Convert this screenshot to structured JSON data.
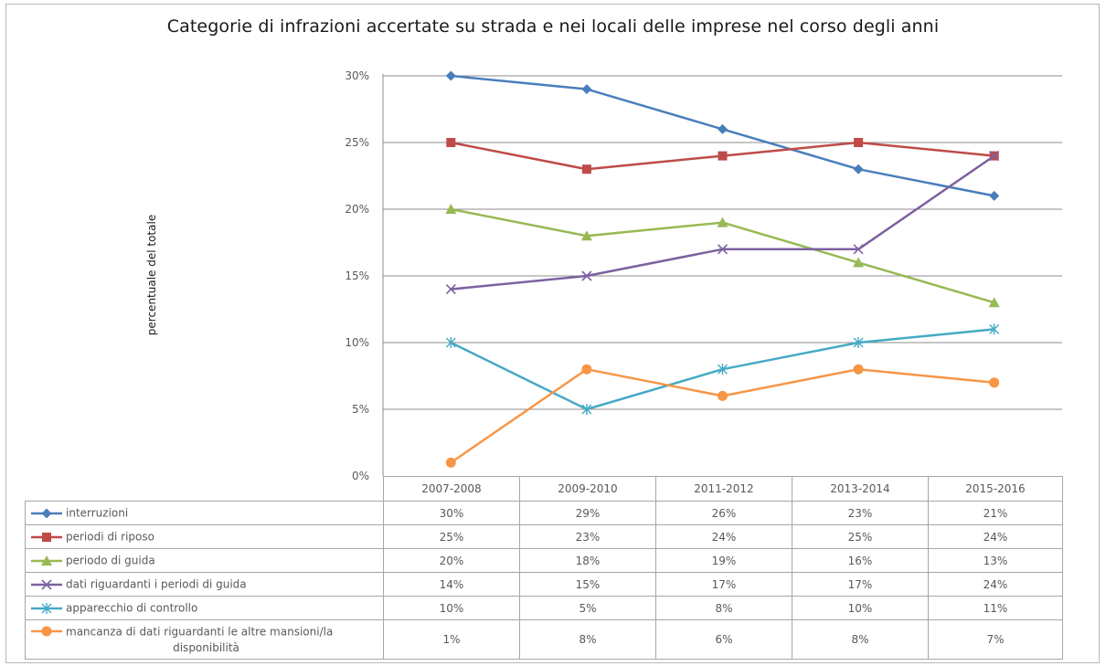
{
  "chart_data": {
    "type": "line",
    "title": "Categorie di infrazioni accertate su strada e nei locali delle imprese nel corso degli anni",
    "ylabel": "percentuale del totale",
    "xlabel": "",
    "categories": [
      "2007-2008",
      "2009-2010",
      "2011-2012",
      "2013-2014",
      "2015-2016"
    ],
    "ylim": [
      0,
      30
    ],
    "yticks": [
      "0%",
      "5%",
      "10%",
      "15%",
      "20%",
      "25%",
      "30%"
    ],
    "grid": true,
    "legend": "data-table",
    "series": [
      {
        "name": "interruzioni",
        "values": [
          30,
          29,
          26,
          23,
          21
        ],
        "labels": [
          "30%",
          "29%",
          "26%",
          "23%",
          "21%"
        ],
        "color": "#4a7ebb",
        "marker": "diamond"
      },
      {
        "name": "periodi di riposo",
        "values": [
          25,
          23,
          24,
          25,
          24
        ],
        "labels": [
          "25%",
          "23%",
          "24%",
          "25%",
          "24%"
        ],
        "color": "#be4b48",
        "marker": "square"
      },
      {
        "name": "periodo di guida",
        "values": [
          20,
          18,
          19,
          16,
          13
        ],
        "labels": [
          "20%",
          "18%",
          "19%",
          "16%",
          "13%"
        ],
        "color": "#98b954",
        "marker": "triangle"
      },
      {
        "name": "dati riguardanti i periodi di guida",
        "values": [
          14,
          15,
          17,
          17,
          24
        ],
        "labels": [
          "14%",
          "15%",
          "17%",
          "17%",
          "24%"
        ],
        "color": "#7d60a0",
        "marker": "x"
      },
      {
        "name": "apparecchio di controllo",
        "values": [
          10,
          5,
          8,
          10,
          11
        ],
        "labels": [
          "10%",
          "5%",
          "8%",
          "10%",
          "11%"
        ],
        "color": "#46aac5",
        "marker": "star"
      },
      {
        "name": "mancanza di dati riguardanti le altre mansioni/la disponibilità",
        "name_lines": [
          "mancanza di dati riguardanti le altre mansioni/la",
          "disponibilità"
        ],
        "values": [
          1,
          8,
          6,
          8,
          7
        ],
        "labels": [
          "1%",
          "8%",
          "6%",
          "8%",
          "7%"
        ],
        "color": "#f79646",
        "marker": "circle"
      }
    ]
  }
}
